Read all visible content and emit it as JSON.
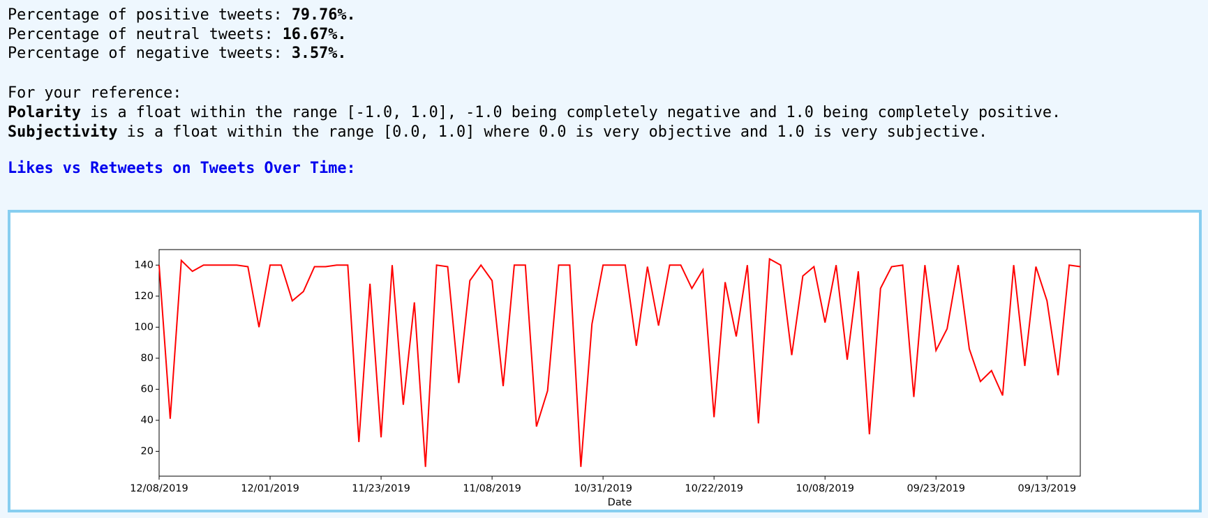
{
  "summary": [
    {
      "label": "Percentage of positive tweets: ",
      "value": "79.76%."
    },
    {
      "label": "Percentage of neutral tweets: ",
      "value": "16.67%."
    },
    {
      "label": "Percentage of negative tweets: ",
      "value": "3.57%."
    }
  ],
  "reference": {
    "intro": "For your reference:",
    "lines": [
      {
        "term": "Polarity",
        "text": " is a float within the range [-1.0, 1.0], -1.0 being completely negative and 1.0 being completely positive."
      },
      {
        "term": "Subjectivity",
        "text": " is a float within the range [0.0, 1.0] where 0.0 is very objective and 1.0 is very subjective."
      }
    ]
  },
  "section_heading": "Likes vs Retweets on Tweets Over Time:",
  "chart_data": {
    "type": "line",
    "x_label": "Date",
    "color": "#ff0000",
    "grid": false,
    "categories": [
      "12/08/2019",
      null,
      null,
      null,
      null,
      null,
      null,
      null,
      null,
      null,
      "12/01/2019",
      null,
      null,
      null,
      null,
      null,
      null,
      null,
      null,
      null,
      "11/23/2019",
      null,
      null,
      null,
      null,
      null,
      null,
      null,
      null,
      null,
      "11/08/2019",
      null,
      null,
      null,
      null,
      null,
      null,
      null,
      null,
      null,
      "10/31/2019",
      null,
      null,
      null,
      null,
      null,
      null,
      null,
      null,
      null,
      "10/22/2019",
      null,
      null,
      null,
      null,
      null,
      null,
      null,
      null,
      null,
      "10/08/2019",
      null,
      null,
      null,
      null,
      null,
      null,
      null,
      null,
      null,
      "09/23/2019",
      null,
      null,
      null,
      null,
      null,
      null,
      null,
      null,
      null,
      "09/13/2019",
      null,
      null,
      null
    ],
    "values": [
      140,
      41,
      143,
      136,
      140,
      140,
      140,
      140,
      139,
      100,
      140,
      140,
      117,
      123,
      139,
      139,
      140,
      140,
      26,
      128,
      29,
      140,
      50,
      116,
      10,
      140,
      139,
      64,
      130,
      140,
      130,
      62,
      140,
      140,
      36,
      59,
      140,
      140,
      10,
      102,
      140,
      140,
      140,
      88,
      139,
      101,
      140,
      140,
      125,
      137,
      42,
      129,
      94,
      140,
      38,
      144,
      140,
      82,
      133,
      139,
      103,
      140,
      79,
      136,
      31,
      125,
      139,
      140,
      55,
      140,
      85,
      99,
      140,
      86,
      65,
      72,
      56,
      140,
      75,
      139,
      117,
      69,
      140,
      139
    ],
    "ylim": [
      4,
      150
    ],
    "yticks": [
      20,
      40,
      60,
      80,
      100,
      120,
      140
    ]
  }
}
